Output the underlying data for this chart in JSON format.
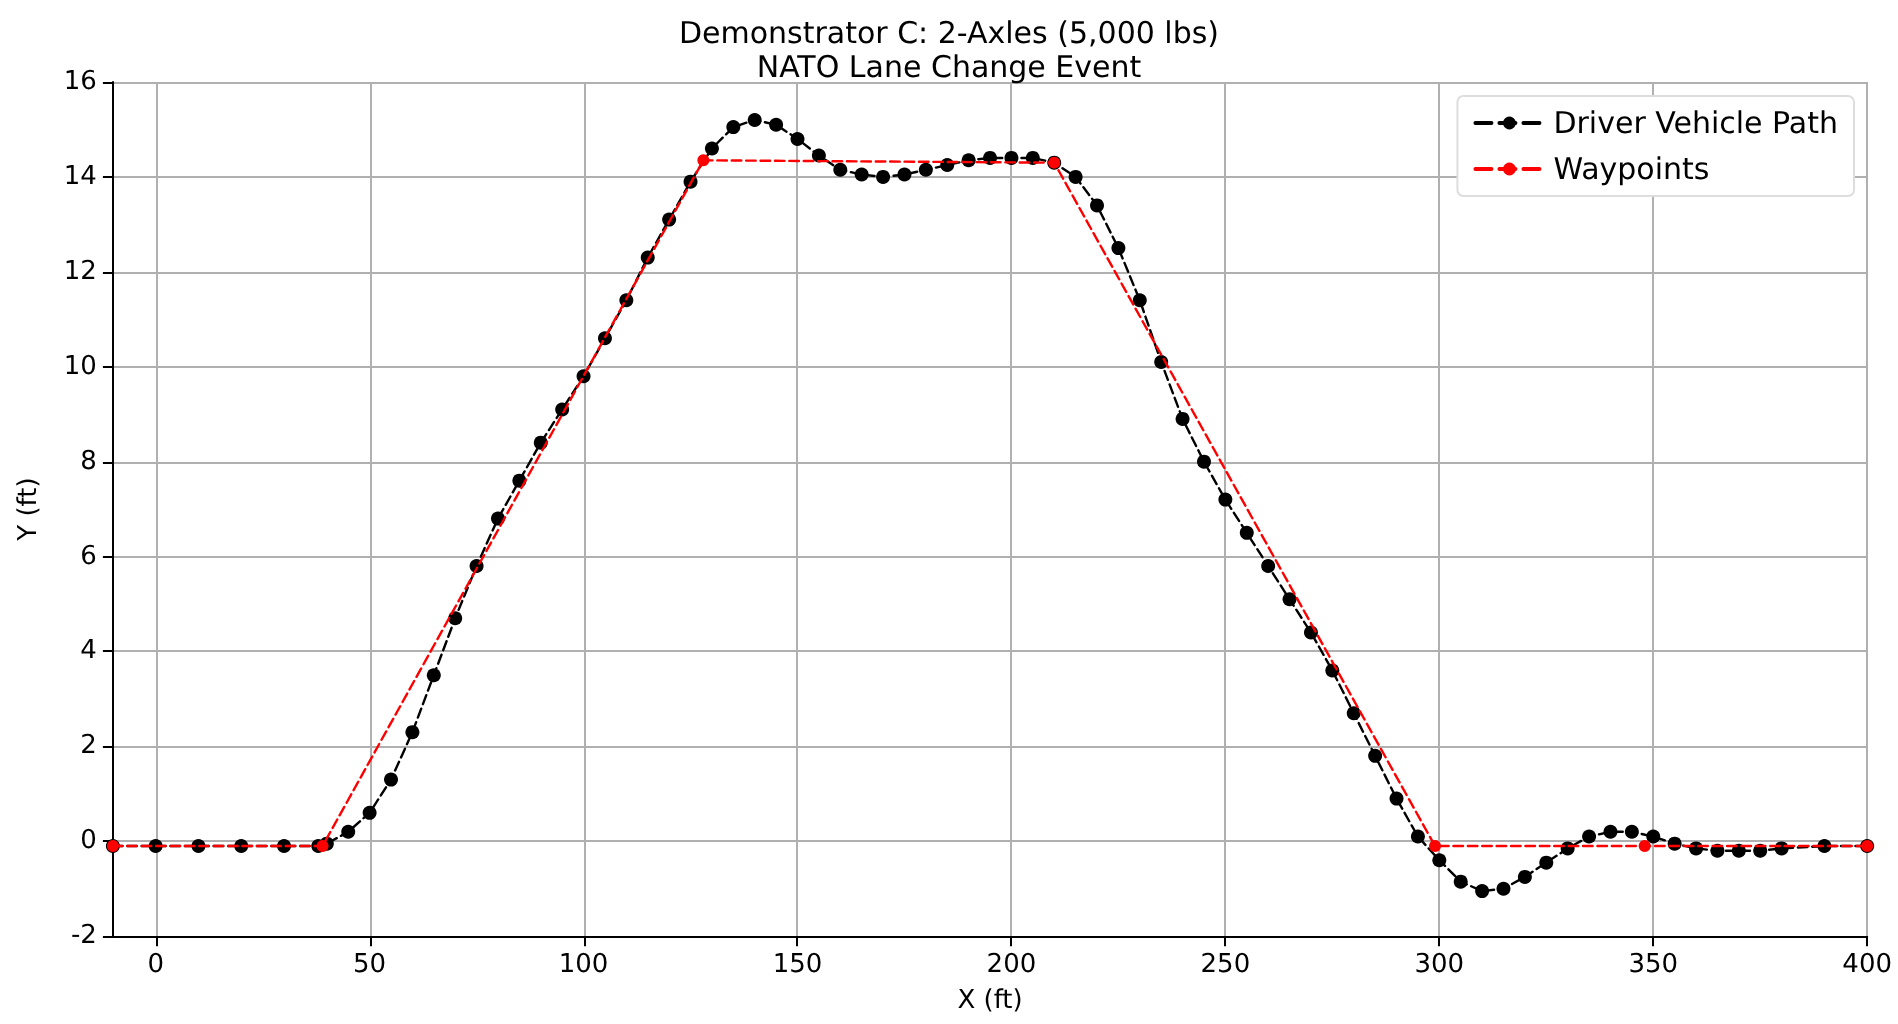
{
  "chart_data": {
    "type": "line",
    "title": "Demonstrator C: 2-Axles (5,000 lbs)",
    "subtitle": "NATO Lane Change Event",
    "xlabel": "X (ft)",
    "ylabel": "Y (ft)",
    "xlim": [
      -10,
      400
    ],
    "xticks": [
      0,
      50,
      100,
      150,
      200,
      250,
      300,
      350,
      400
    ],
    "ylim": [
      -2,
      16
    ],
    "yticks": [
      -2,
      0,
      2,
      4,
      6,
      8,
      10,
      12,
      14,
      16
    ],
    "grid": true,
    "legend": "top right",
    "marker": "circle",
    "line_style": "dashed",
    "series": [
      {
        "name": "Driver Vehicle Path",
        "color": "#000000",
        "x": [
          -10,
          0,
          10,
          20,
          30,
          38,
          40,
          45,
          50,
          55,
          60,
          65,
          70,
          75,
          80,
          85,
          90,
          95,
          100,
          105,
          110,
          115,
          120,
          125,
          130,
          135,
          140,
          145,
          150,
          155,
          160,
          165,
          170,
          175,
          180,
          185,
          190,
          195,
          200,
          205,
          210,
          215,
          220,
          225,
          230,
          235,
          240,
          245,
          250,
          255,
          260,
          265,
          270,
          275,
          280,
          285,
          290,
          295,
          300,
          305,
          310,
          315,
          320,
          325,
          330,
          335,
          340,
          345,
          350,
          355,
          360,
          365,
          370,
          375,
          380,
          390,
          400
        ],
        "values": [
          -0.1,
          -0.1,
          -0.1,
          -0.1,
          -0.1,
          -0.1,
          -0.05,
          0.2,
          0.6,
          1.3,
          2.3,
          3.5,
          4.7,
          5.8,
          6.8,
          7.6,
          8.4,
          9.1,
          9.8,
          10.6,
          11.4,
          12.3,
          13.1,
          13.9,
          14.6,
          15.05,
          15.2,
          15.1,
          14.8,
          14.45,
          14.15,
          14.05,
          14.0,
          14.05,
          14.15,
          14.25,
          14.35,
          14.4,
          14.4,
          14.4,
          14.3,
          14.0,
          13.4,
          12.5,
          11.4,
          10.1,
          8.9,
          8.0,
          7.2,
          6.5,
          5.8,
          5.1,
          4.4,
          3.6,
          2.7,
          1.8,
          0.9,
          0.1,
          -0.4,
          -0.85,
          -1.05,
          -1.0,
          -0.75,
          -0.45,
          -0.15,
          0.1,
          0.2,
          0.2,
          0.1,
          -0.05,
          -0.15,
          -0.2,
          -0.2,
          -0.2,
          -0.15,
          -0.1,
          -0.1
        ]
      },
      {
        "name": "Waypoints",
        "color": "#ff0000",
        "x": [
          -10,
          39,
          128,
          210,
          299,
          348,
          400
        ],
        "values": [
          -0.1,
          -0.1,
          14.35,
          14.3,
          -0.1,
          -0.1,
          -0.1
        ]
      }
    ]
  }
}
